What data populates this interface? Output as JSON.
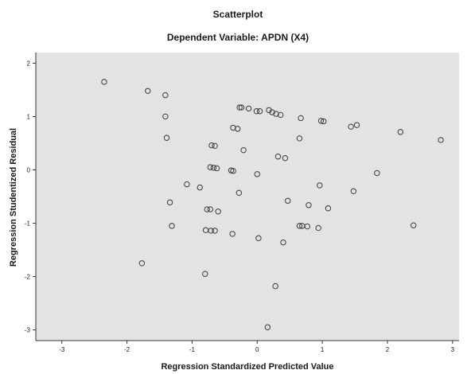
{
  "chart_data": {
    "type": "scatter",
    "title": "Scatterplot",
    "subtitle": "Dependent Variable: APDN (X4)",
    "xlabel": "Regression Standardized Predicted Value",
    "ylabel": "Regression Studentized Residual",
    "xlim": [
      -3.4,
      3.1
    ],
    "ylim": [
      -3.2,
      2.2
    ],
    "xticks": [
      -3,
      -2,
      -1,
      0,
      1,
      2,
      3
    ],
    "yticks": [
      2,
      1,
      0,
      -1,
      -2,
      -3
    ],
    "grid": false,
    "legend": "none",
    "colors": {
      "plot_background": "#e3e3e3",
      "marker_stroke": "#3a3a3a",
      "axis": "#333333"
    },
    "series": [
      {
        "points": [
          [
            -2.35,
            1.65
          ],
          [
            -1.68,
            1.48
          ],
          [
            -1.41,
            1.4
          ],
          [
            -1.41,
            1.0
          ],
          [
            -1.39,
            0.6
          ],
          [
            -0.27,
            1.17
          ],
          [
            -0.24,
            1.17
          ],
          [
            -0.13,
            1.15
          ],
          [
            -0.01,
            1.1
          ],
          [
            0.04,
            1.1
          ],
          [
            0.18,
            1.12
          ],
          [
            0.23,
            1.08
          ],
          [
            0.29,
            1.05
          ],
          [
            0.36,
            1.03
          ],
          [
            0.67,
            0.97
          ],
          [
            0.98,
            0.92
          ],
          [
            1.02,
            0.91
          ],
          [
            1.44,
            0.81
          ],
          [
            1.53,
            0.84
          ],
          [
            2.2,
            0.71
          ],
          [
            2.82,
            0.56
          ],
          [
            -0.37,
            0.79
          ],
          [
            -0.3,
            0.77
          ],
          [
            -0.7,
            0.46
          ],
          [
            -0.65,
            0.45
          ],
          [
            -0.21,
            0.37
          ],
          [
            0.65,
            0.59
          ],
          [
            0.32,
            0.25
          ],
          [
            0.43,
            0.22
          ],
          [
            -0.72,
            0.05
          ],
          [
            -0.67,
            0.04
          ],
          [
            -0.62,
            0.03
          ],
          [
            -0.4,
            -0.01
          ],
          [
            -0.37,
            -0.02
          ],
          [
            0.0,
            -0.08
          ],
          [
            1.84,
            -0.06
          ],
          [
            -1.08,
            -0.27
          ],
          [
            -0.88,
            -0.33
          ],
          [
            -0.28,
            -0.43
          ],
          [
            0.96,
            -0.29
          ],
          [
            1.48,
            -0.4
          ],
          [
            -1.34,
            -0.61
          ],
          [
            0.47,
            -0.58
          ],
          [
            0.79,
            -0.66
          ],
          [
            -0.77,
            -0.74
          ],
          [
            -0.72,
            -0.74
          ],
          [
            -0.6,
            -0.78
          ],
          [
            1.09,
            -0.72
          ],
          [
            -1.31,
            -1.05
          ],
          [
            0.65,
            -1.05
          ],
          [
            0.69,
            -1.05
          ],
          [
            0.77,
            -1.06
          ],
          [
            0.94,
            -1.09
          ],
          [
            2.4,
            -1.04
          ],
          [
            -0.79,
            -1.13
          ],
          [
            -0.71,
            -1.14
          ],
          [
            -0.65,
            -1.14
          ],
          [
            -0.38,
            -1.2
          ],
          [
            0.02,
            -1.28
          ],
          [
            0.4,
            -1.36
          ],
          [
            -1.77,
            -1.75
          ],
          [
            -0.8,
            -1.95
          ],
          [
            0.28,
            -2.18
          ],
          [
            0.16,
            -2.95
          ]
        ]
      }
    ]
  }
}
